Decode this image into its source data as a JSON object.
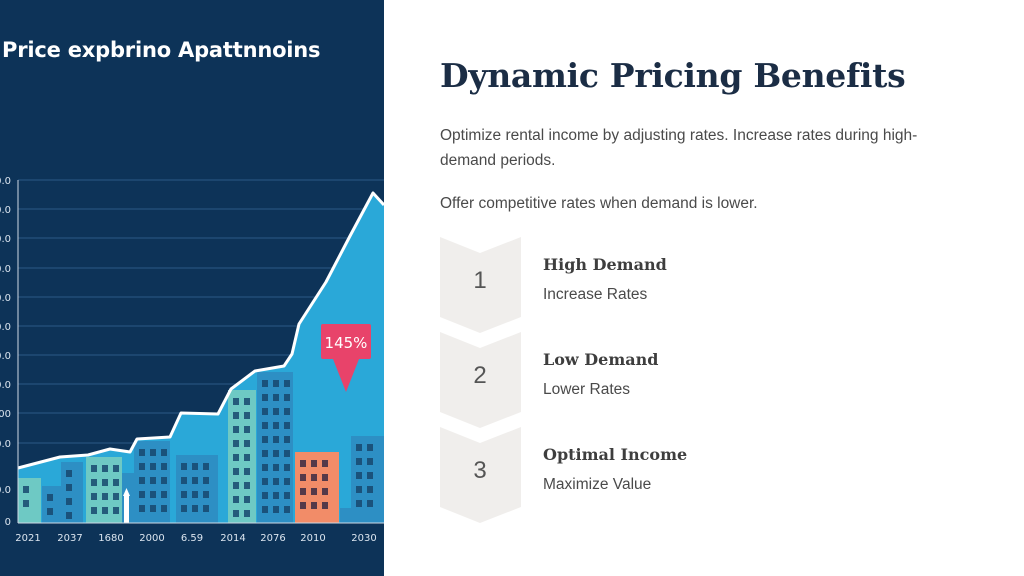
{
  "illustration": {
    "title": "Price expbrino Apattnnoins",
    "callout": "145%",
    "y_tick_labels": [
      "0.0",
      "0.0",
      "0.0",
      "0.0",
      "0.0",
      "0.0",
      "0.0",
      "0.0",
      "00",
      "0.0",
      "0.0",
      "0"
    ],
    "x_tick_labels": [
      "2021",
      "2037",
      "1680",
      "2000",
      "6.59",
      "2014",
      "2076",
      "2010",
      "2030"
    ],
    "colors": {
      "background": "#0d3358",
      "area": "#2aa8d8",
      "line": "#ffffff",
      "callout": "#e8436a",
      "building_teal": "#6ec9c4",
      "building_blue": "#2d8fc4",
      "building_orange": "#f28c68"
    }
  },
  "content": {
    "title": "Dynamic Pricing Benefits",
    "paragraph_1": "Optimize rental income by adjusting rates. Increase rates during high-demand periods.",
    "paragraph_2": "Offer competitive rates when demand is lower.",
    "steps": [
      {
        "number": "1",
        "title": "High Demand",
        "subtitle": "Increase Rates"
      },
      {
        "number": "2",
        "title": "Low Demand",
        "subtitle": "Lower Rates"
      },
      {
        "number": "3",
        "title": "Optimal Income",
        "subtitle": "Maximize Value"
      }
    ],
    "colors": {
      "title": "#1b2d45",
      "text": "#4a4a4a",
      "chevron": "#f0eeec"
    }
  }
}
